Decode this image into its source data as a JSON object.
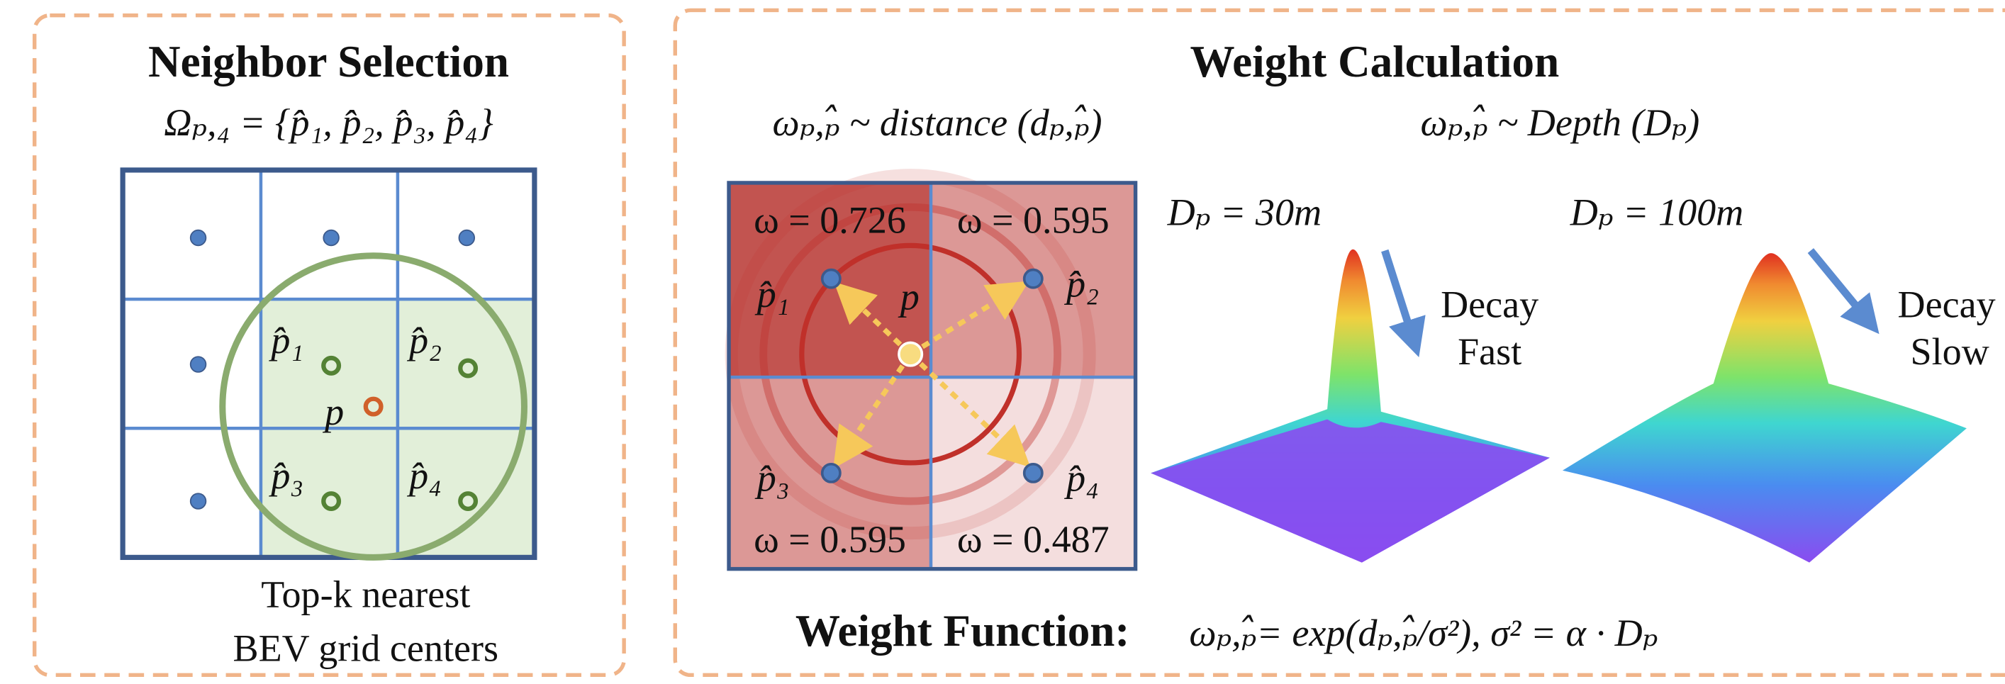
{
  "neighbor_selection": {
    "title": "Neighbor Selection",
    "formula": "Ωₚ,₄ = {p̂₁, p̂₂, p̂₃, p̂₄}",
    "neighbors": [
      "p̂₁",
      "p̂₂",
      "p̂₃",
      "p̂₄"
    ],
    "query": "p",
    "caption": [
      "Top-k nearest",
      "BEV grid centers"
    ]
  },
  "weight_calculation": {
    "title": "Weight Calculation",
    "distance_formula": "ωₚ,ₚ̂ ~ distance (dₚ,ₚ̂)",
    "depth_formula": "ωₚ,ₚ̂ ~ Depth (Dₚ)",
    "cells": [
      "ω = 0.726",
      "ω = 0.595",
      "ω = 0.595",
      "ω = 0.487"
    ],
    "neighbors": [
      "p̂₁",
      "p̂₂",
      "p̂₃",
      "p̂₄"
    ],
    "query": "p",
    "near": {
      "depth": "Dₚ = 30m",
      "decay": [
        "Decay",
        "Fast"
      ]
    },
    "far": {
      "depth": "Dₚ = 100m",
      "decay": [
        "Decay",
        "Slow"
      ]
    },
    "function_label": "Weight Function:",
    "function": "ωₚ,ₚ̂= exp(dₚ,ₚ̂/σ²),  σ² = α · Dₚ"
  }
}
